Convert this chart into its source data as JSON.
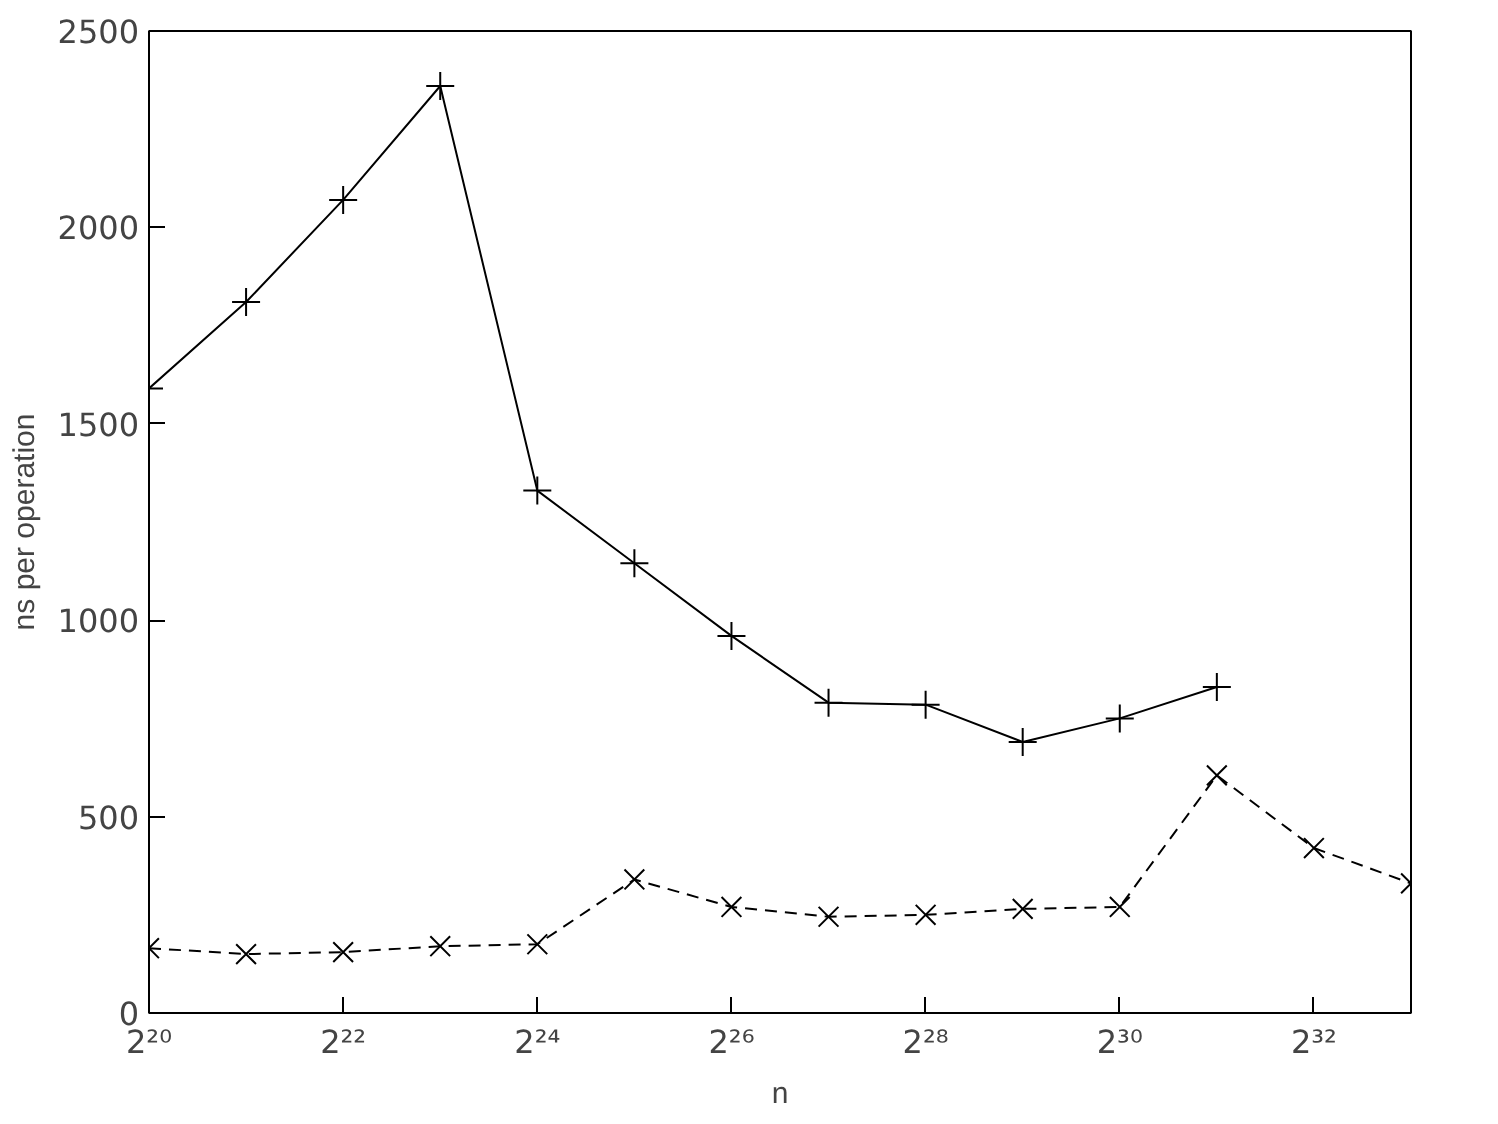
{
  "chart_data": {
    "type": "line",
    "xlabel": "n",
    "ylabel": "ns per operation",
    "log": "x",
    "xlim": [
      1048576,
      8589934592
    ],
    "ylim": [
      0,
      2500
    ],
    "xticks": [
      {
        "value": 1048576,
        "label": "2²⁰"
      },
      {
        "value": 4194304,
        "label": "2²²"
      },
      {
        "value": 16777216,
        "label": "2²⁴"
      },
      {
        "value": 67108864,
        "label": "2²⁶"
      },
      {
        "value": 268435456,
        "label": "2²⁸"
      },
      {
        "value": 1073741824,
        "label": "2³⁰"
      },
      {
        "value": 4294967296,
        "label": "2³²"
      }
    ],
    "yticks": [
      0,
      500,
      1000,
      1500,
      2000,
      2500
    ],
    "grid": false,
    "series": [
      {
        "color": "#000000",
        "marker": "cross",
        "line_style": "solid",
        "x": [
          1048576,
          2097152,
          4194304,
          8388608,
          16777216,
          33554432,
          67108864,
          134217728,
          268435456,
          536870912,
          1073741824,
          2147483648
        ],
        "values": [
          1590,
          1810,
          2070,
          2360,
          1330,
          1145,
          960,
          790,
          785,
          690,
          750,
          830
        ]
      },
      {
        "color": "#000000",
        "marker": "x",
        "line_style": "dashed",
        "x": [
          1048576,
          2097152,
          4194304,
          8388608,
          16777216,
          33554432,
          67108864,
          134217728,
          268435456,
          536870912,
          1073741824,
          2147483648,
          4294967296,
          8589934592
        ],
        "values": [
          165,
          150,
          155,
          170,
          175,
          340,
          270,
          245,
          250,
          265,
          270,
          605,
          420,
          330
        ]
      }
    ]
  }
}
